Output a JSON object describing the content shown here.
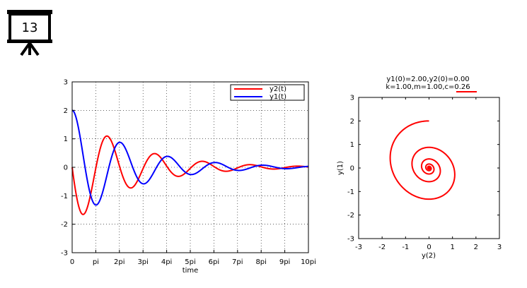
{
  "slide": {
    "number": "13"
  },
  "chart_data": [
    {
      "type": "line",
      "xlabel": "time",
      "ylabel": "",
      "xlim": [
        0,
        31.4159
      ],
      "ylim": [
        -3,
        3
      ],
      "xticks": [
        0,
        3.14159,
        6.28319,
        9.42478,
        12.56637,
        15.70796,
        18.84956,
        21.99115,
        25.13274,
        28.27433,
        31.41593
      ],
      "xtick_labels": [
        "0",
        "pi",
        "2pi",
        "3pi",
        "4pi",
        "5pi",
        "6pi",
        "7pi",
        "8pi",
        "9pi",
        "10pi"
      ],
      "yticks": [
        -3,
        -2,
        -1,
        0,
        1,
        2,
        3
      ],
      "ytick_labels": [
        "-3",
        "-2",
        "-1",
        "0",
        "1",
        "2",
        "3"
      ],
      "grid": true,
      "legend": "top-right",
      "series": [
        {
          "name": "y2(t)",
          "color": "#ff0000",
          "initial": {
            "y1": 2.0,
            "y2": 0.0
          },
          "params": {
            "k": 1.0,
            "m": 1.0,
            "c": 0.26
          }
        },
        {
          "name": "y1(t)",
          "color": "#0000ff",
          "initial": {
            "y1": 2.0,
            "y2": 0.0
          },
          "params": {
            "k": 1.0,
            "m": 1.0,
            "c": 0.26
          }
        }
      ]
    },
    {
      "type": "line",
      "title_line1": "y1(0)=2.00,y2(0)=0.00",
      "title_line2": "k=1.00,m=1.00,c=0.26",
      "xlabel": "y(2)",
      "ylabel": "y(1)",
      "xlim": [
        -3,
        3
      ],
      "ylim": [
        -3,
        3
      ],
      "xticks": [
        -3,
        -2,
        -1,
        0,
        1,
        2,
        3
      ],
      "xtick_labels": [
        "-3",
        "-2",
        "-1",
        "0",
        "1",
        "2",
        "3"
      ],
      "yticks": [
        -3,
        -2,
        -1,
        0,
        1,
        2,
        3
      ],
      "ytick_labels": [
        "-3",
        "-2",
        "-1",
        "0",
        "1",
        "2",
        "3"
      ],
      "grid": false,
      "series": [
        {
          "color": "#ff0000",
          "initial": {
            "y1": 2.0,
            "y2": 0.0
          },
          "params": {
            "k": 1.0,
            "m": 1.0,
            "c": 0.26
          }
        }
      ],
      "highlight": {
        "text": "c=0.26",
        "underline_color": "#ff0000"
      }
    }
  ]
}
